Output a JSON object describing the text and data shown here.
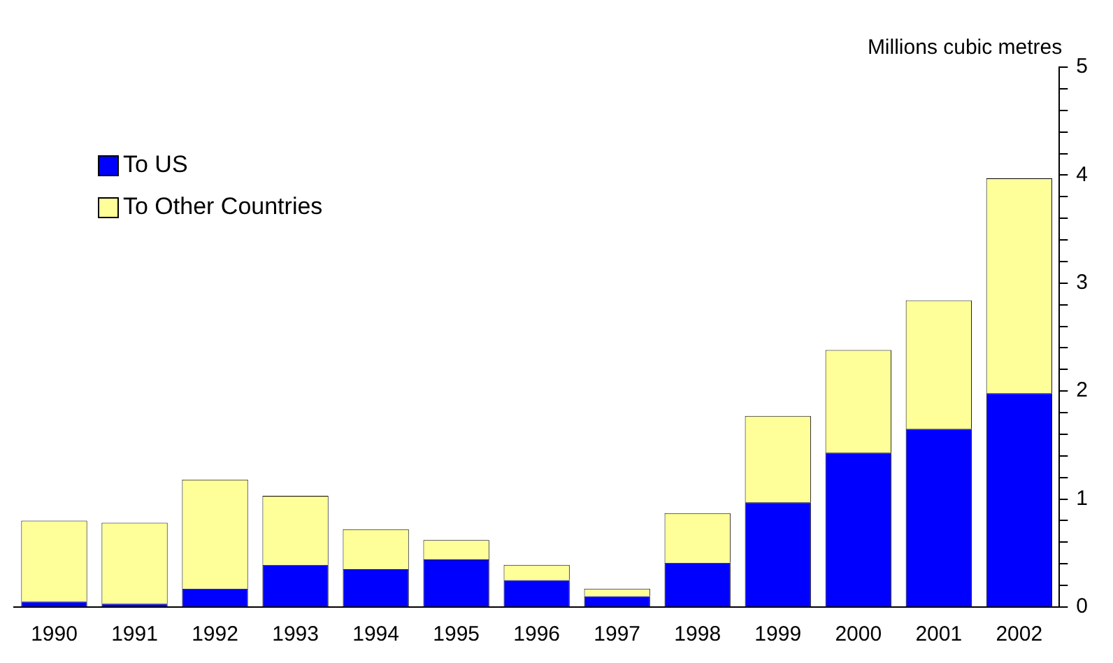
{
  "chart_data": {
    "type": "bar",
    "stacked": true,
    "ylabel": "Millions cubic metres",
    "categories": [
      "1990",
      "1991",
      "1992",
      "1993",
      "1994",
      "1995",
      "1996",
      "1997",
      "1998",
      "1999",
      "2000",
      "2001",
      "2002"
    ],
    "series": [
      {
        "name": "To US",
        "color": "#0000ff",
        "values": [
          0.05,
          0.03,
          0.17,
          0.39,
          0.35,
          0.44,
          0.25,
          0.1,
          0.41,
          0.97,
          1.43,
          1.65,
          1.98
        ]
      },
      {
        "name": "To Other Countries",
        "color": "#ffff99",
        "values": [
          0.75,
          0.75,
          1.01,
          0.64,
          0.37,
          0.18,
          0.14,
          0.07,
          0.46,
          0.8,
          0.95,
          1.19,
          1.99
        ]
      }
    ],
    "ylim": [
      0,
      5
    ],
    "yticks": [
      0,
      {
        "value": 0.2,
        "label": null
      },
      {
        "value": 0.4,
        "label": null
      },
      {
        "value": 0.6,
        "label": null
      },
      {
        "value": 0.8,
        "label": null
      },
      1,
      {
        "value": 1.2,
        "label": null
      },
      {
        "value": 1.4,
        "label": null
      },
      {
        "value": 1.6,
        "label": null
      },
      {
        "value": 1.8,
        "label": null
      },
      2,
      {
        "value": 2.2,
        "label": null
      },
      {
        "value": 2.4,
        "label": null
      },
      {
        "value": 2.6,
        "label": null
      },
      {
        "value": 2.8,
        "label": null
      },
      3,
      {
        "value": 3.2,
        "label": null
      },
      {
        "value": 3.4,
        "label": null
      },
      {
        "value": 3.6,
        "label": null
      },
      {
        "value": 3.8,
        "label": null
      },
      4,
      {
        "value": 4.2,
        "label": null
      },
      {
        "value": 4.4,
        "label": null
      },
      {
        "value": 4.6,
        "label": null
      },
      {
        "value": 4.8,
        "label": null
      },
      5
    ],
    "grid": false,
    "legend": "top left"
  }
}
